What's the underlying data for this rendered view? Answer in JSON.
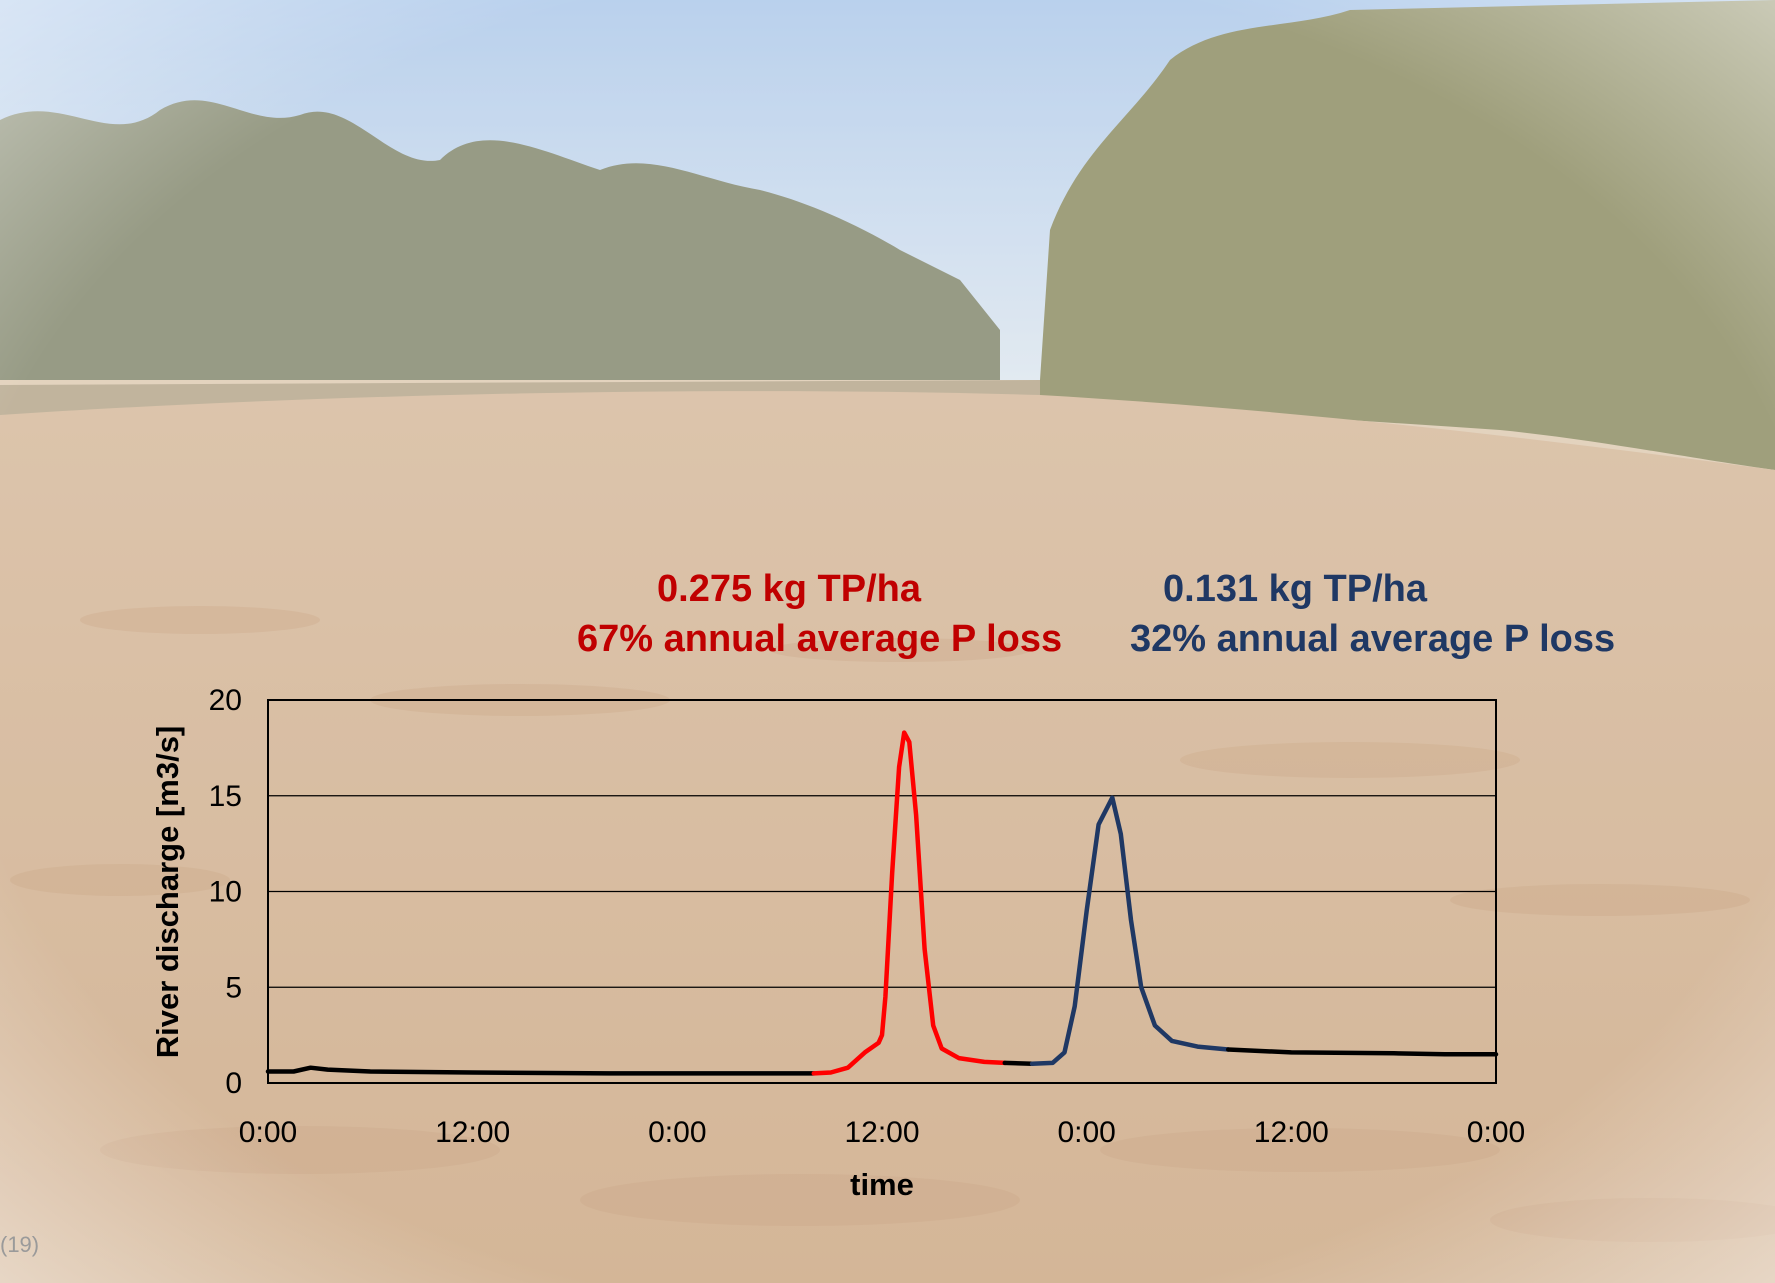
{
  "annotations": {
    "event1": {
      "mass": "0.275 kg TP/ha",
      "share": "67% annual average P loss",
      "color": "#c00000"
    },
    "event2": {
      "mass": "0.131 kg TP/ha",
      "share": "32% annual average P loss",
      "color": "#1f3864"
    }
  },
  "corner_label": "(19)",
  "background": {
    "description_colors": {
      "sky": "#bcd3ea",
      "trees": "#6f7557",
      "water": "#c99f76"
    }
  },
  "chart_data": {
    "type": "line",
    "title": "",
    "xlabel": "time",
    "ylabel": "River discharge [m3/s]",
    "ylim": [
      0,
      20
    ],
    "yticks": [
      0,
      5,
      10,
      15,
      20
    ],
    "xlim_hours": [
      0,
      72
    ],
    "xticks": [
      {
        "hour": 0,
        "label": "0:00"
      },
      {
        "hour": 12,
        "label": "12:00"
      },
      {
        "hour": 24,
        "label": "0:00"
      },
      {
        "hour": 36,
        "label": "12:00"
      },
      {
        "hour": 48,
        "label": "0:00"
      },
      {
        "hour": 60,
        "label": "12:00"
      },
      {
        "hour": 72,
        "label": "0:00"
      }
    ],
    "grid": "horizontal",
    "series": [
      {
        "color": "#000000",
        "points": [
          [
            0,
            0.6
          ],
          [
            1.5,
            0.6
          ],
          [
            2.5,
            0.8
          ],
          [
            3.5,
            0.7
          ],
          [
            6,
            0.6
          ],
          [
            12,
            0.55
          ],
          [
            20,
            0.5
          ],
          [
            28,
            0.5
          ],
          [
            32,
            0.5
          ]
        ]
      },
      {
        "color": "#ff0000",
        "points": [
          [
            32,
            0.5
          ],
          [
            33,
            0.55
          ],
          [
            34,
            0.8
          ],
          [
            35,
            1.6
          ],
          [
            35.8,
            2.1
          ],
          [
            36,
            2.5
          ],
          [
            36.2,
            4.5
          ],
          [
            36.6,
            11
          ],
          [
            37,
            16.5
          ],
          [
            37.3,
            18.3
          ],
          [
            37.6,
            17.8
          ],
          [
            38,
            14
          ],
          [
            38.5,
            7
          ],
          [
            39,
            3
          ],
          [
            39.5,
            1.8
          ],
          [
            40.5,
            1.3
          ],
          [
            42,
            1.1
          ],
          [
            43.2,
            1.05
          ]
        ]
      },
      {
        "color": "#000000",
        "points": [
          [
            43.2,
            1.05
          ],
          [
            44.8,
            1.0
          ]
        ]
      },
      {
        "color": "#1f3864",
        "points": [
          [
            44.8,
            1.0
          ],
          [
            46,
            1.05
          ],
          [
            46.7,
            1.6
          ],
          [
            47.3,
            4
          ],
          [
            48,
            9
          ],
          [
            48.7,
            13.5
          ],
          [
            49.5,
            14.9
          ],
          [
            50,
            13
          ],
          [
            50.6,
            8.5
          ],
          [
            51.2,
            5
          ],
          [
            52,
            3
          ],
          [
            53,
            2.2
          ],
          [
            54.5,
            1.9
          ],
          [
            56.3,
            1.75
          ]
        ]
      },
      {
        "color": "#000000",
        "points": [
          [
            56.3,
            1.75
          ],
          [
            60,
            1.6
          ],
          [
            66,
            1.55
          ],
          [
            69,
            1.5
          ],
          [
            72,
            1.5
          ]
        ]
      }
    ]
  }
}
